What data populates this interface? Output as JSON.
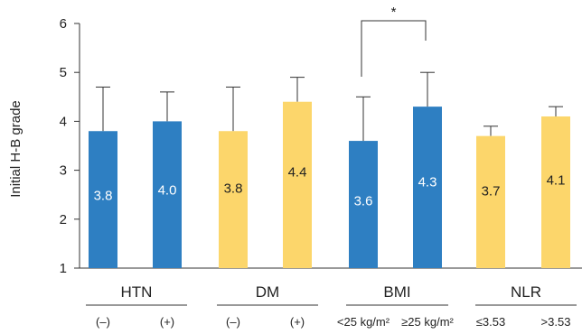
{
  "chart_data": {
    "type": "bar",
    "ylabel": "Initial H-B grade",
    "ylim": [
      1,
      6
    ],
    "yticks": [
      "1",
      "2",
      "3",
      "4",
      "5",
      "6"
    ],
    "groups": [
      {
        "label": "HTN",
        "categories": [
          "(–)",
          "(+)"
        ]
      },
      {
        "label": "DM",
        "categories": [
          "(–)",
          "(+)"
        ]
      },
      {
        "label": "BMI",
        "categories": [
          "<25 kg/m²",
          "≥25 kg/m²"
        ]
      },
      {
        "label": "NLR",
        "categories": [
          "≤3.53",
          ">3.53"
        ]
      }
    ],
    "bars": [
      {
        "group": "HTN",
        "category": "(–)",
        "value": 3.8,
        "label": "3.8",
        "error_upper": 4.7,
        "color": "#2e7fc2"
      },
      {
        "group": "HTN",
        "category": "(+)",
        "value": 4.0,
        "label": "4.0",
        "error_upper": 4.6,
        "color": "#2e7fc2"
      },
      {
        "group": "DM",
        "category": "(–)",
        "value": 3.8,
        "label": "3.8",
        "error_upper": 4.7,
        "color": "#fcd66b"
      },
      {
        "group": "DM",
        "category": "(+)",
        "value": 4.4,
        "label": "4.4",
        "error_upper": 4.9,
        "color": "#fcd66b"
      },
      {
        "group": "BMI",
        "category": "<25 kg/m²",
        "value": 3.6,
        "label": "3.6",
        "error_upper": 4.5,
        "color": "#2e7fc2"
      },
      {
        "group": "BMI",
        "category": "≥25 kg/m²",
        "value": 4.3,
        "label": "4.3",
        "error_upper": 5.0,
        "color": "#2e7fc2"
      },
      {
        "group": "NLR",
        "category": "≤3.53",
        "value": 3.7,
        "label": "3.7",
        "error_upper": 3.9,
        "color": "#fcd66b"
      },
      {
        "group": "NLR",
        "category": ">3.53",
        "value": 4.1,
        "label": "4.1",
        "error_upper": 4.3,
        "color": "#fcd66b"
      }
    ],
    "significance": [
      {
        "between": [
          4,
          5
        ],
        "label": "*"
      }
    ],
    "colors": {
      "blue": "#2e7fc2",
      "yellow": "#fcd66b",
      "label_on_blue": "#ffffff",
      "label_on_yellow": "#222222"
    },
    "grid": false
  }
}
